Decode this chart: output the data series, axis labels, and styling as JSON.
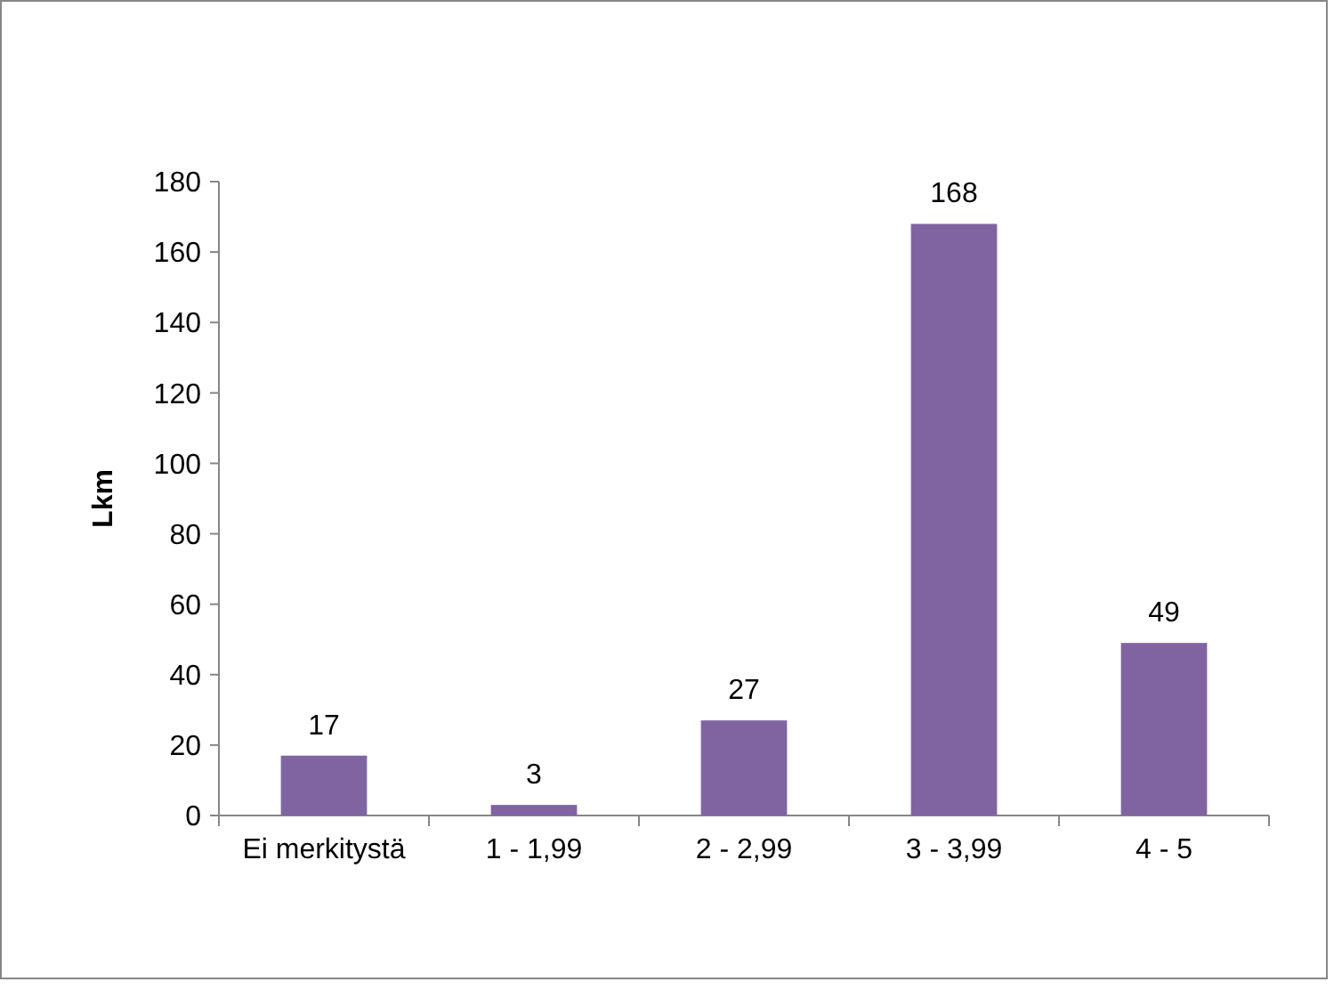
{
  "chart_data": {
    "type": "bar",
    "ylabel": "Lkm",
    "categories": [
      "Ei merkitystä",
      "1 - 1,99",
      "2 - 2,99",
      "3 - 3,99",
      "4 - 5"
    ],
    "values": [
      17,
      3,
      27,
      168,
      49
    ],
    "color": "#8064a2",
    "ylim": [
      0,
      180
    ],
    "yticks": [
      0,
      20,
      40,
      60,
      80,
      100,
      120,
      140,
      160,
      180
    ],
    "grid": false,
    "data_labels": true
  }
}
